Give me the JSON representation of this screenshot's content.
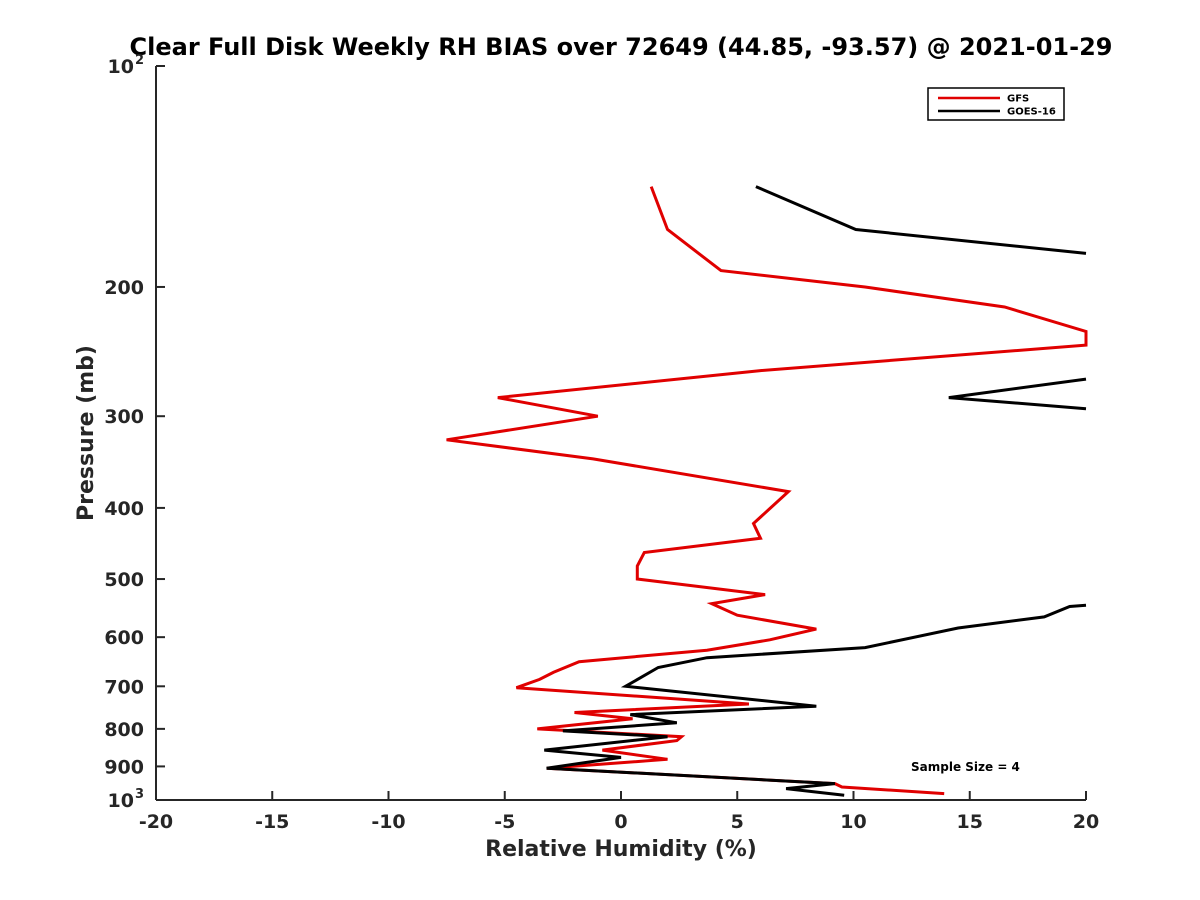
{
  "chart_data": {
    "type": "line",
    "title": "Clear Full Disk Weekly RH BIAS over 72649 (44.85, -93.57) @ 2021-01-29",
    "xlabel": "Relative Humidity (%)",
    "ylabel": "Pressure (mb)",
    "xlim": [
      -20,
      20
    ],
    "ylim": [
      100,
      1000
    ],
    "y_scale": "log",
    "y_reversed": true,
    "grid": false,
    "legend_position": "top-right",
    "x_ticks": [
      -20,
      -15,
      -10,
      -5,
      0,
      5,
      10,
      15,
      20
    ],
    "x_tick_labels": [
      "-20",
      "-15",
      "-10",
      "-5",
      "0",
      "5",
      "10",
      "15",
      "20"
    ],
    "y_ticks": [
      100,
      200,
      300,
      400,
      500,
      600,
      700,
      800,
      900,
      1000
    ],
    "y_tick_labels": [
      {
        "base": "10",
        "exp": "2"
      },
      {
        "base": "200",
        "exp": ""
      },
      {
        "base": "300",
        "exp": ""
      },
      {
        "base": "400",
        "exp": ""
      },
      {
        "base": "500",
        "exp": ""
      },
      {
        "base": "600",
        "exp": ""
      },
      {
        "base": "700",
        "exp": ""
      },
      {
        "base": "800",
        "exp": ""
      },
      {
        "base": "900",
        "exp": ""
      },
      {
        "base": "10",
        "exp": "3"
      }
    ],
    "annotation": "Sample Size = 4",
    "series": [
      {
        "name": "GFS",
        "color": "#e00000",
        "points": [
          [
            1.3,
            146
          ],
          [
            2.0,
            167
          ],
          [
            4.3,
            190
          ],
          [
            10.5,
            200
          ],
          [
            16.5,
            213
          ],
          [
            20.0,
            230
          ],
          [
            20.0,
            240
          ],
          [
            6.0,
            260
          ],
          [
            -5.3,
            283
          ],
          [
            -1.0,
            300
          ],
          [
            -7.5,
            323
          ],
          [
            -1.2,
            343
          ],
          [
            7.2,
            380
          ],
          [
            5.7,
            420
          ],
          [
            6.0,
            440
          ],
          [
            1.0,
            460
          ],
          [
            0.7,
            480
          ],
          [
            0.7,
            500
          ],
          [
            6.2,
            525
          ],
          [
            3.9,
            540
          ],
          [
            5.0,
            560
          ],
          [
            8.4,
            585
          ],
          [
            6.4,
            605
          ],
          [
            3.7,
            625
          ],
          [
            -1.8,
            648
          ],
          [
            -2.9,
            670
          ],
          [
            -3.5,
            685
          ],
          [
            -4.5,
            703
          ],
          [
            5.5,
            740
          ],
          [
            -2.0,
            760
          ],
          [
            0.5,
            775
          ],
          [
            -3.6,
            800
          ],
          [
            2.6,
            820
          ],
          [
            2.4,
            830
          ],
          [
            -0.8,
            855
          ],
          [
            2.0,
            880
          ],
          [
            -3.2,
            905
          ],
          [
            9.2,
            950
          ],
          [
            9.5,
            960
          ],
          [
            13.9,
            980
          ]
        ]
      },
      {
        "name": "GOES-16",
        "color": "#000000",
        "points": [
          [
            5.8,
            146
          ],
          [
            10.1,
            167
          ],
          [
            20.0,
            180
          ],
          null,
          [
            20.0,
            267
          ],
          [
            14.1,
            283
          ],
          [
            20.0,
            293
          ],
          null,
          [
            20.0,
            543
          ],
          [
            19.3,
            545
          ],
          [
            18.2,
            563
          ],
          [
            14.5,
            583
          ],
          [
            10.5,
            620
          ],
          [
            3.7,
            640
          ],
          [
            1.6,
            660
          ],
          [
            0.2,
            700
          ],
          [
            8.4,
            745
          ],
          [
            0.4,
            765
          ],
          [
            2.4,
            785
          ],
          [
            -2.5,
            805
          ],
          [
            2.0,
            820
          ],
          [
            -3.3,
            855
          ],
          [
            0.0,
            875
          ],
          [
            -3.2,
            905
          ],
          [
            9.2,
            950
          ],
          [
            7.1,
            965
          ],
          [
            9.6,
            985
          ]
        ]
      }
    ]
  }
}
